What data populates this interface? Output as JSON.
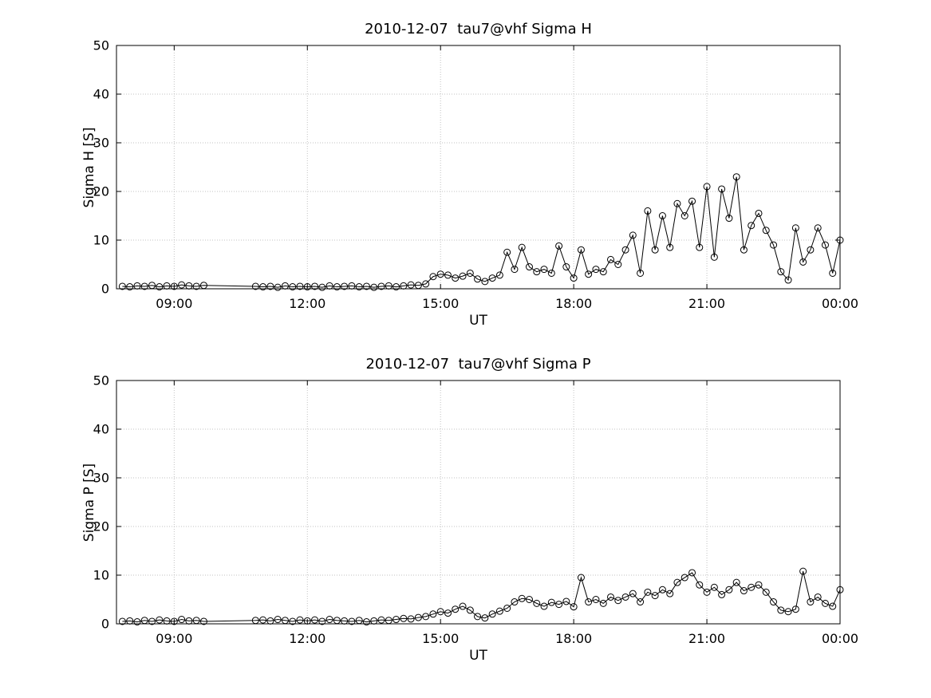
{
  "page": {
    "background": "#ffffff"
  },
  "chart_data": [
    {
      "type": "line",
      "title": "2010-12-07  tau7@vhf Sigma H",
      "xlabel": "UT",
      "ylabel": "Sigma H [S]",
      "xlim": [
        7.7,
        24.0
      ],
      "ylim": [
        0,
        50
      ],
      "grid": true,
      "legend": "none",
      "marker": "open-circle",
      "xticks": [
        {
          "v": 9,
          "label": "09:00"
        },
        {
          "v": 12,
          "label": "12:00"
        },
        {
          "v": 15,
          "label": "15:00"
        },
        {
          "v": 18,
          "label": "18:00"
        },
        {
          "v": 21,
          "label": "21:00"
        },
        {
          "v": 24,
          "label": "00:00"
        }
      ],
      "yticks": [
        {
          "v": 0,
          "label": "0"
        },
        {
          "v": 10,
          "label": "10"
        },
        {
          "v": 20,
          "label": "20"
        },
        {
          "v": 30,
          "label": "30"
        },
        {
          "v": 40,
          "label": "40"
        },
        {
          "v": 50,
          "label": "50"
        }
      ],
      "style": {
        "line_color": "#000000",
        "axis_color": "#000000",
        "grid_color": "#c2c2c2"
      },
      "x": [
        7.833,
        8.0,
        8.167,
        8.333,
        8.5,
        8.667,
        8.833,
        9.0,
        9.167,
        9.333,
        9.5,
        9.667,
        10.833,
        11.0,
        11.167,
        11.333,
        11.5,
        11.667,
        11.833,
        12.0,
        12.167,
        12.333,
        12.5,
        12.667,
        12.833,
        13.0,
        13.167,
        13.333,
        13.5,
        13.667,
        13.833,
        14.0,
        14.167,
        14.333,
        14.5,
        14.667,
        14.833,
        15.0,
        15.167,
        15.333,
        15.5,
        15.667,
        15.833,
        16.0,
        16.167,
        16.333,
        16.5,
        16.667,
        16.833,
        17.0,
        17.167,
        17.333,
        17.5,
        17.667,
        17.833,
        18.0,
        18.167,
        18.333,
        18.5,
        18.667,
        18.833,
        19.0,
        19.167,
        19.333,
        19.5,
        19.667,
        19.833,
        20.0,
        20.167,
        20.333,
        20.5,
        20.667,
        20.833,
        21.0,
        21.167,
        21.333,
        21.5,
        21.667,
        21.833,
        22.0,
        22.167,
        22.333,
        22.5,
        22.667,
        22.833,
        23.0,
        23.167,
        23.333,
        23.5,
        23.667,
        23.833,
        24.0
      ],
      "values": [
        0.5,
        0.4,
        0.6,
        0.5,
        0.7,
        0.4,
        0.6,
        0.5,
        0.8,
        0.6,
        0.5,
        0.7,
        0.5,
        0.4,
        0.5,
        0.3,
        0.6,
        0.4,
        0.5,
        0.4,
        0.5,
        0.3,
        0.6,
        0.4,
        0.5,
        0.6,
        0.4,
        0.5,
        0.3,
        0.5,
        0.6,
        0.4,
        0.6,
        0.8,
        0.7,
        1.0,
        2.5,
        3.0,
        2.8,
        2.2,
        2.6,
        3.2,
        2.0,
        1.5,
        2.2,
        2.8,
        7.5,
        4.0,
        8.5,
        4.5,
        3.5,
        4.0,
        3.2,
        8.8,
        4.5,
        2.2,
        8.0,
        3.0,
        4.0,
        3.5,
        6.0,
        5.0,
        8.0,
        11.0,
        3.2,
        16.0,
        8.0,
        15.0,
        8.5,
        17.5,
        15.0,
        18.0,
        8.5,
        21.0,
        6.5,
        20.5,
        14.5,
        23.0,
        8.0,
        13.0,
        15.5,
        12.0,
        9.0,
        3.5,
        1.8,
        12.5,
        5.5,
        8.0,
        12.5,
        9.0,
        3.2,
        10.0
      ]
    },
    {
      "type": "line",
      "title": "2010-12-07  tau7@vhf Sigma P",
      "xlabel": "UT",
      "ylabel": "Sigma P [S]",
      "xlim": [
        7.7,
        24.0
      ],
      "ylim": [
        0,
        50
      ],
      "grid": true,
      "legend": "none",
      "marker": "open-circle",
      "xticks": [
        {
          "v": 9,
          "label": "09:00"
        },
        {
          "v": 12,
          "label": "12:00"
        },
        {
          "v": 15,
          "label": "15:00"
        },
        {
          "v": 18,
          "label": "18:00"
        },
        {
          "v": 21,
          "label": "21:00"
        },
        {
          "v": 24,
          "label": "00:00"
        }
      ],
      "yticks": [
        {
          "v": 0,
          "label": "0"
        },
        {
          "v": 10,
          "label": "10"
        },
        {
          "v": 20,
          "label": "20"
        },
        {
          "v": 30,
          "label": "30"
        },
        {
          "v": 40,
          "label": "40"
        },
        {
          "v": 50,
          "label": "50"
        }
      ],
      "style": {
        "line_color": "#000000",
        "axis_color": "#000000",
        "grid_color": "#c2c2c2"
      },
      "x": [
        7.833,
        8.0,
        8.167,
        8.333,
        8.5,
        8.667,
        8.833,
        9.0,
        9.167,
        9.333,
        9.5,
        9.667,
        10.833,
        11.0,
        11.167,
        11.333,
        11.5,
        11.667,
        11.833,
        12.0,
        12.167,
        12.333,
        12.5,
        12.667,
        12.833,
        13.0,
        13.167,
        13.333,
        13.5,
        13.667,
        13.833,
        14.0,
        14.167,
        14.333,
        14.5,
        14.667,
        14.833,
        15.0,
        15.167,
        15.333,
        15.5,
        15.667,
        15.833,
        16.0,
        16.167,
        16.333,
        16.5,
        16.667,
        16.833,
        17.0,
        17.167,
        17.333,
        17.5,
        17.667,
        17.833,
        18.0,
        18.167,
        18.333,
        18.5,
        18.667,
        18.833,
        19.0,
        19.167,
        19.333,
        19.5,
        19.667,
        19.833,
        20.0,
        20.167,
        20.333,
        20.5,
        20.667,
        20.833,
        21.0,
        21.167,
        21.333,
        21.5,
        21.667,
        21.833,
        22.0,
        22.167,
        22.333,
        22.5,
        22.667,
        22.833,
        23.0,
        23.167,
        23.333,
        23.5,
        23.667,
        23.833,
        24.0
      ],
      "values": [
        0.5,
        0.6,
        0.4,
        0.7,
        0.5,
        0.8,
        0.6,
        0.5,
        0.9,
        0.6,
        0.7,
        0.5,
        0.7,
        0.8,
        0.6,
        0.9,
        0.7,
        0.5,
        0.8,
        0.6,
        0.8,
        0.5,
        0.9,
        0.7,
        0.6,
        0.5,
        0.7,
        0.4,
        0.6,
        0.8,
        0.7,
        0.9,
        1.1,
        1.0,
        1.3,
        1.5,
        2.0,
        2.5,
        2.2,
        3.0,
        3.6,
        2.8,
        1.5,
        1.2,
        2.0,
        2.6,
        3.2,
        4.5,
        5.2,
        5.0,
        4.2,
        3.6,
        4.4,
        4.0,
        4.6,
        3.5,
        9.5,
        4.5,
        5.0,
        4.2,
        5.5,
        4.8,
        5.5,
        6.2,
        4.5,
        6.5,
        5.8,
        7.0,
        6.2,
        8.5,
        9.5,
        10.5,
        8.0,
        6.5,
        7.5,
        6.0,
        7.0,
        8.5,
        6.8,
        7.5,
        8.0,
        6.5,
        4.5,
        2.8,
        2.5,
        3.0,
        10.8,
        4.5,
        5.5,
        4.2,
        3.6,
        7.0
      ]
    }
  ]
}
